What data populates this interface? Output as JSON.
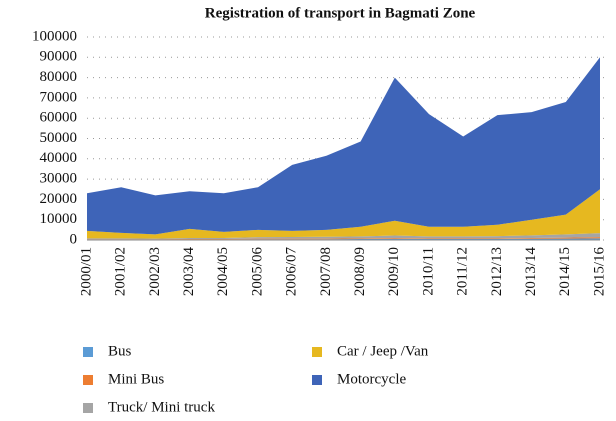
{
  "chart_data": {
    "type": "stacked_area",
    "title": "Registration of transport in Bagmati Zone",
    "categories": [
      "2000/01",
      "2001/02",
      "2002/03",
      "2003/04",
      "2004/05",
      "2005/06",
      "2006/07",
      "2007/08",
      "2008/09",
      "2009/10",
      "2010/11",
      "2011/12",
      "2012/13",
      "2013/14",
      "2014/15",
      "2015/16"
    ],
    "series": [
      {
        "name": "Bus",
        "color": "#5b9bd5",
        "values": [
          200,
          200,
          200,
          300,
          300,
          400,
          400,
          400,
          500,
          600,
          500,
          500,
          500,
          600,
          700,
          800
        ]
      },
      {
        "name": "Mini Bus",
        "color": "#ed7d31",
        "values": [
          200,
          200,
          200,
          200,
          200,
          300,
          300,
          300,
          300,
          400,
          300,
          300,
          300,
          400,
          500,
          600
        ]
      },
      {
        "name": "Truck/ Mini truck",
        "color": "#a5a5a5",
        "values": [
          400,
          400,
          300,
          500,
          500,
          700,
          800,
          900,
          1000,
          1200,
          1000,
          1000,
          1100,
          1300,
          1600,
          2000
        ]
      },
      {
        "name": "Car / Jeep /Van",
        "color": "#e6b820",
        "values": [
          3700,
          2700,
          2100,
          4500,
          3000,
          3600,
          3000,
          3400,
          4700,
          7300,
          4700,
          4700,
          5600,
          7700,
          9700,
          21600
        ]
      },
      {
        "name": "Motorcycle",
        "color": "#3e64b8",
        "values": [
          18500,
          22500,
          19200,
          18500,
          19000,
          21000,
          32500,
          36500,
          42000,
          70500,
          55500,
          44500,
          54000,
          53000,
          55500,
          65000
        ]
      }
    ],
    "ylim": [
      0,
      100000
    ],
    "yticks": [
      0,
      10000,
      20000,
      30000,
      40000,
      50000,
      60000,
      70000,
      80000,
      90000,
      100000
    ],
    "grid": true,
    "legend": "bottom"
  }
}
